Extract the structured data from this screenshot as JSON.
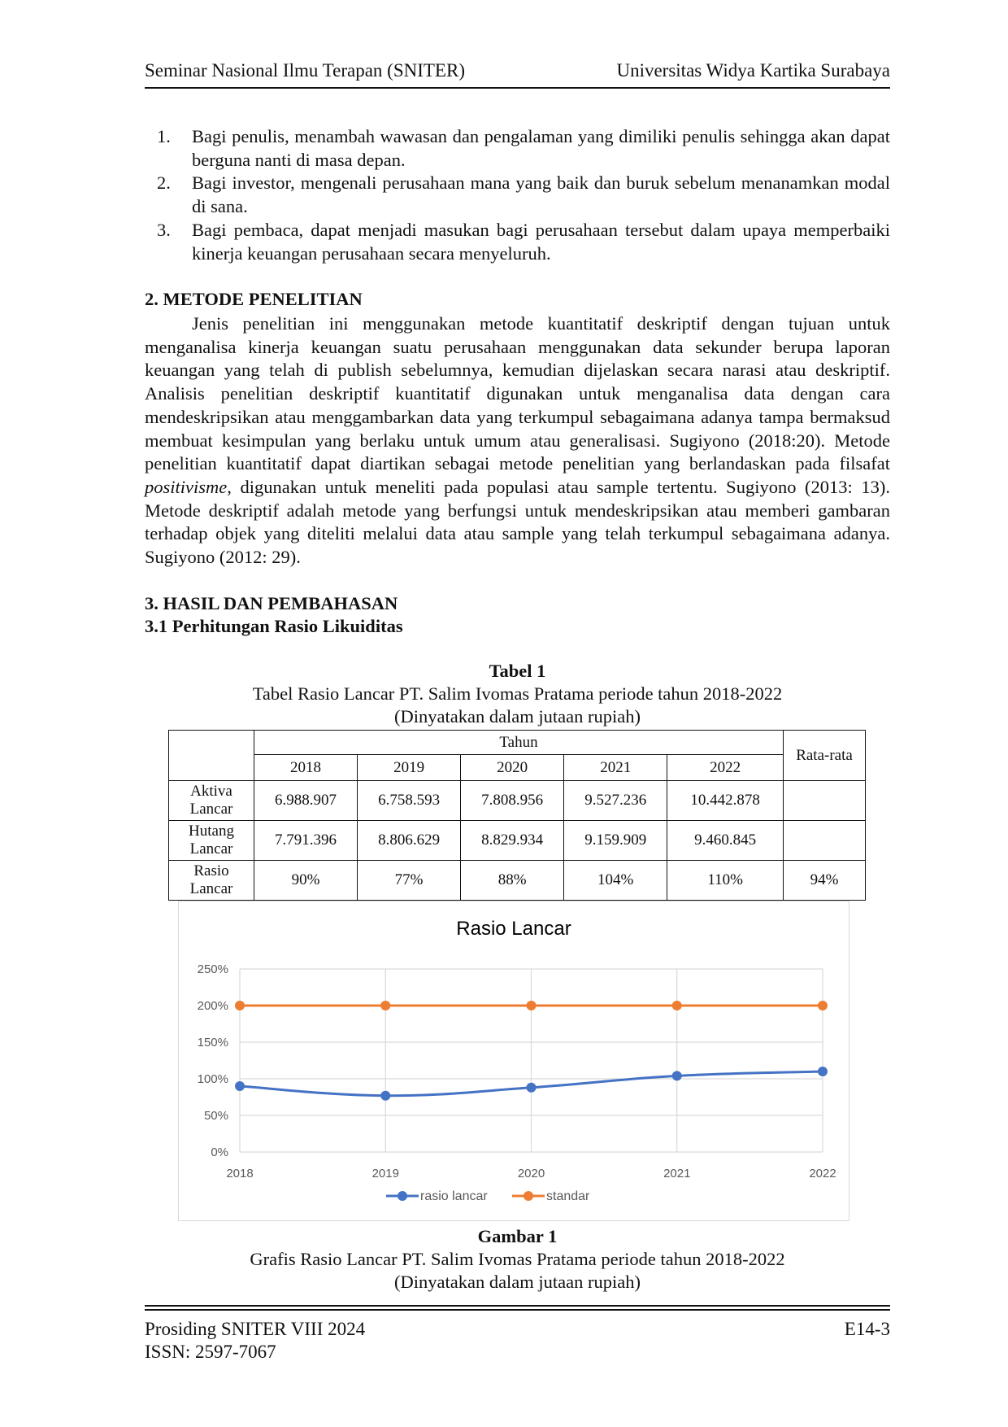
{
  "header": {
    "left": "Seminar Nasional Ilmu Terapan (SNITER)",
    "right": "Universitas Widya Kartika Surabaya"
  },
  "benefits": [
    {
      "num": "1.",
      "text": "Bagi penulis, menambah wawasan dan pengalaman yang dimiliki penulis sehingga akan dapat berguna nanti di masa depan."
    },
    {
      "num": "2.",
      "text": "Bagi investor, mengenali perusahaan mana yang baik dan buruk sebelum menanamkan modal di sana."
    },
    {
      "num": "3.",
      "text": "Bagi pembaca, dapat menjadi masukan bagi perusahaan tersebut dalam upaya memperbaiki kinerja keuangan perusahaan secara menyeluruh."
    }
  ],
  "section2": {
    "heading": "2.  METODE PENELITIAN",
    "para_before": "Jenis penelitian ini menggunakan metode kuantitatif deskriptif dengan tujuan untuk menganalisa kinerja keuangan suatu perusahaan menggunakan data sekunder berupa laporan keuangan yang telah di publish sebelumnya, kemudian dijelaskan secara narasi atau deskriptif. Analisis penelitian deskriptif kuantitatif digunakan untuk menganalisa data dengan cara mendeskripsikan atau menggambarkan data yang terkumpul sebagaimana adanya tampa bermaksud membuat kesimpulan yang berlaku untuk umum atau generalisasi. Sugiyono (2018:20). Metode penelitian kuantitatif dapat diartikan sebagai metode penelitian yang berlandaskan pada filsafat ",
    "para_italic": "positivisme,",
    "para_after": " digunakan untuk meneliti pada populasi atau sample tertentu. Sugiyono (2013: 13). Metode deskriptif adalah metode yang berfungsi untuk mendeskripsikan atau memberi gambaran terhadap objek yang diteliti melalui data atau sample yang telah terkumpul sebagaimana adanya. Sugiyono (2012: 29)."
  },
  "section3": {
    "heading": "3. HASIL DAN PEMBAHASAN",
    "subheading": "3.1 Perhitungan Rasio Likuiditas"
  },
  "table1": {
    "label": "Tabel 1",
    "title": "Tabel Rasio Lancar PT. Salim Ivomas Pratama periode tahun 2018-2022",
    "unit": "(Dinyatakan dalam jutaan rupiah)",
    "group_header": "Tahun",
    "avg_header": "Rata-rata",
    "years": [
      "2018",
      "2019",
      "2020",
      "2021",
      "2022"
    ],
    "rows": [
      {
        "label_1": "Aktiva",
        "label_2": "Lancar",
        "values": [
          "6.988.907",
          "6.758.593",
          "7.808.956",
          "9.527.236",
          "10.442.878"
        ],
        "avg": ""
      },
      {
        "label_1": "Hutang",
        "label_2": "Lancar",
        "values": [
          "7.791.396",
          "8.806.629",
          "8.829.934",
          "9.159.909",
          "9.460.845"
        ],
        "avg": ""
      },
      {
        "label_1": "Rasio",
        "label_2": "Lancar",
        "values": [
          "90%",
          "77%",
          "88%",
          "104%",
          "110%"
        ],
        "avg": "94%"
      }
    ]
  },
  "chart_data": {
    "type": "line",
    "title": "Rasio Lancar",
    "x": [
      "2018",
      "2019",
      "2020",
      "2021",
      "2022"
    ],
    "yticks": [
      "0%",
      "50%",
      "100%",
      "150%",
      "200%",
      "250%"
    ],
    "ylim": [
      0,
      250
    ],
    "grid": true,
    "legend_position": "bottom",
    "series": [
      {
        "name": "rasio lancar",
        "values": [
          90,
          77,
          88,
          104,
          110
        ],
        "color": "#4472c4"
      },
      {
        "name": "standar",
        "values": [
          200,
          200,
          200,
          200,
          200
        ],
        "color": "#ed7d31"
      }
    ],
    "gridline_color": "#d9d9d9",
    "text_color": "#595959"
  },
  "figure1": {
    "label": "Gambar 1",
    "title": "Grafis Rasio Lancar PT. Salim Ivomas Pratama periode tahun 2018-2022",
    "unit": "(Dinyatakan dalam jutaan rupiah)"
  },
  "footer": {
    "left_1": "Prosiding SNITER VIII 2024",
    "right_1": "E14-3",
    "left_2": "ISSN: 2597-7067"
  }
}
